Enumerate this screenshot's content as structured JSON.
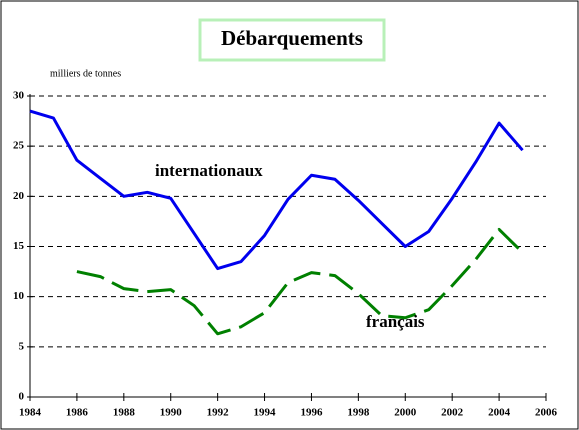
{
  "chart_data": {
    "type": "line",
    "title": "Débarquements",
    "y_label": "milliers de tonnes",
    "x": [
      1984,
      1985,
      1986,
      1987,
      1988,
      1989,
      1990,
      1991,
      1992,
      1993,
      1994,
      1995,
      1996,
      1997,
      1998,
      1999,
      2000,
      2001,
      2002,
      2003,
      2004,
      2005
    ],
    "series": [
      {
        "name": "internationaux",
        "color": "#0000ee",
        "dashed": false,
        "values": [
          28.5,
          27.8,
          23.6,
          21.8,
          20.0,
          20.4,
          19.8,
          16.3,
          12.8,
          13.5,
          16.1,
          19.7,
          22.1,
          21.7,
          19.6,
          17.3,
          15.0,
          16.5,
          19.8,
          23.4,
          27.3,
          24.6
        ]
      },
      {
        "name": "français",
        "color": "#008000",
        "dashed": true,
        "values": [
          null,
          null,
          12.5,
          12.0,
          10.8,
          10.5,
          10.7,
          9.1,
          6.3,
          7.0,
          8.4,
          11.4,
          12.4,
          12.1,
          10.3,
          8.1,
          7.9,
          8.7,
          11.1,
          13.7,
          16.7,
          14.4
        ]
      }
    ],
    "xlim": [
      1984,
      2006
    ],
    "xticks": [
      1984,
      1986,
      1988,
      1990,
      1992,
      1994,
      1996,
      1998,
      2000,
      2002,
      2004,
      2006
    ],
    "ylim": [
      0,
      30
    ],
    "yticks": [
      0,
      5,
      10,
      15,
      20,
      25,
      30
    ],
    "grid": true
  }
}
